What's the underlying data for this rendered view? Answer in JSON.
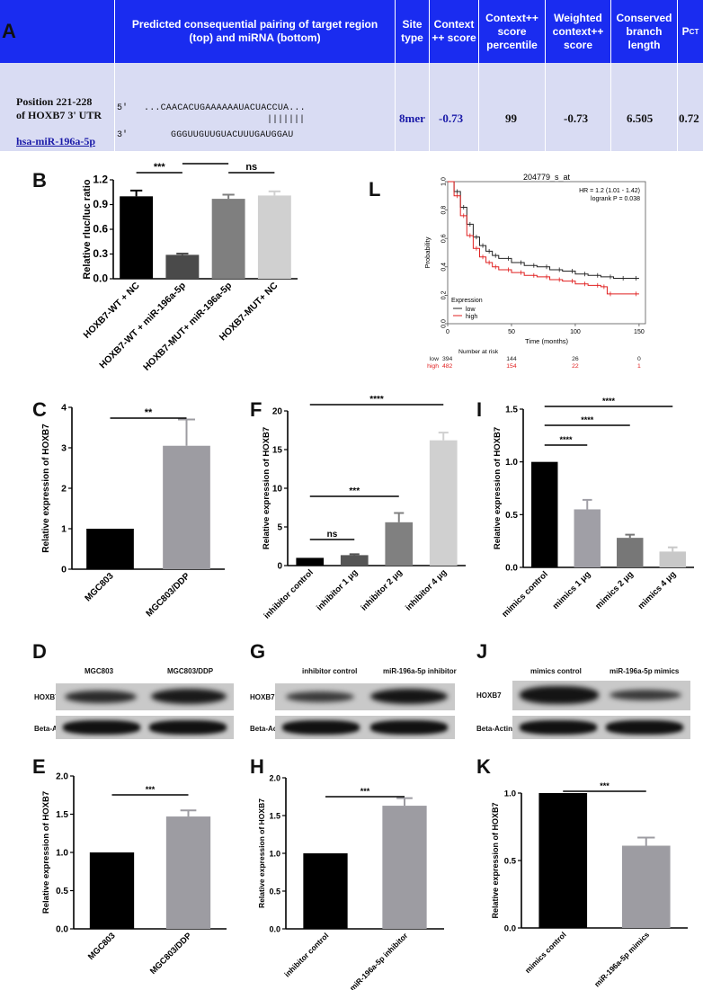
{
  "table": {
    "panel": "A",
    "headers": {
      "pairing": "Predicted consequential pairing of target region (top) and miRNA (bottom)",
      "site_type": "Site type",
      "context_score": "Context ++ score",
      "context_pct": "Context++ score percentile",
      "weighted": "Weighted context++ score",
      "branch": "Conserved branch length",
      "pct": "P",
      "pct_sub": "CT"
    },
    "row": {
      "position_line1": "Position 221-228",
      "position_line2": "of HOXB7 3' UTR",
      "mirna": "hsa-miR-196a-5p",
      "five_prime": "5'",
      "three_prime": "3'",
      "target_seq": "...CAACACUGAAAAAAUACUACCUA...",
      "pairing_marks": "|||||||",
      "mirna_seq": "GGGUUGUUGUACUUUGAUGGAU",
      "site_type": "8mer",
      "context_score": "-0.73",
      "context_pct": "99",
      "weighted": "-0.73",
      "branch": "6.505",
      "pct": "0.72"
    }
  },
  "panel_B": {
    "letter": "B",
    "chart_data": {
      "type": "bar",
      "categories": [
        "HOXB7-WT + NC",
        "HOXB7-WT + miR-196a-5p",
        "HOXB7-MUT+ miR-196a-5p",
        "HOXB7-MUT+ NC"
      ],
      "values": [
        1.0,
        0.29,
        0.97,
        1.01
      ],
      "errors": [
        0.07,
        0.015,
        0.05,
        0.05
      ],
      "colors": [
        "#000000",
        "#4a4a4a",
        "#7f7f7f",
        "#d0d0d0"
      ],
      "ylabel": "Relative rluc/luc ratio",
      "ylim": [
        0,
        1.2
      ],
      "yticks": [
        "0.0",
        "0.3",
        "0.6",
        "0.9",
        "1.2"
      ],
      "significance": [
        "***",
        "****",
        "ns"
      ]
    }
  },
  "panel_L": {
    "letter": "L",
    "chart_data": {
      "type": "line",
      "title": "204779_s_at",
      "xlabel": "Time (months)",
      "ylabel": "Probability",
      "xlim": [
        0,
        155
      ],
      "ylim": [
        0,
        1.0
      ],
      "xticks": [
        "0",
        "50",
        "100",
        "150"
      ],
      "yticks": [
        "0.0",
        "0.2",
        "0.4",
        "0.6",
        "0.8",
        "1.0"
      ],
      "hr_text": "HR = 1.2 (1.01 - 1.42)",
      "logrank_text": "logrank P = 0.038",
      "legend_title": "Expression",
      "series": [
        {
          "name": "low",
          "color": "#222222",
          "x": [
            0,
            5,
            10,
            15,
            20,
            25,
            30,
            35,
            40,
            50,
            60,
            70,
            80,
            90,
            100,
            110,
            120,
            130,
            140,
            150
          ],
          "y": [
            1.0,
            0.93,
            0.82,
            0.7,
            0.61,
            0.55,
            0.51,
            0.48,
            0.46,
            0.43,
            0.41,
            0.4,
            0.38,
            0.37,
            0.35,
            0.34,
            0.33,
            0.32,
            0.32,
            0.32
          ]
        },
        {
          "name": "high",
          "color": "#e02020",
          "x": [
            0,
            5,
            10,
            15,
            20,
            25,
            30,
            35,
            40,
            50,
            60,
            70,
            80,
            90,
            100,
            110,
            120,
            125,
            130,
            150
          ],
          "y": [
            1.0,
            0.9,
            0.76,
            0.62,
            0.53,
            0.47,
            0.43,
            0.4,
            0.38,
            0.36,
            0.34,
            0.33,
            0.31,
            0.3,
            0.28,
            0.27,
            0.26,
            0.21,
            0.21,
            0.21
          ]
        }
      ],
      "risk_table": {
        "header": "Number at risk",
        "rows": [
          {
            "label": "low",
            "values": [
              "394",
              "144",
              "26",
              "0"
            ]
          },
          {
            "label": "high",
            "values": [
              "482",
              "154",
              "22",
              "1"
            ]
          }
        ]
      }
    }
  },
  "panel_C": {
    "letter": "C",
    "chart_data": {
      "type": "bar",
      "categories": [
        "MGC803",
        "MGC803/DDP"
      ],
      "values": [
        1.0,
        3.05
      ],
      "errors": [
        0,
        0.65
      ],
      "colors": [
        "#000000",
        "#9d9ca2"
      ],
      "ylabel": "Relative expression of HOXB7",
      "ylim": [
        0,
        4
      ],
      "yticks": [
        "0",
        "1",
        "2",
        "3",
        "4"
      ],
      "significance": [
        "**"
      ]
    }
  },
  "panel_F": {
    "letter": "F",
    "chart_data": {
      "type": "bar",
      "categories": [
        "inhibitor control",
        "inhibitor 1 μg",
        "inhibitor 2 μg",
        "inhibitor 4 μg"
      ],
      "values": [
        1.0,
        1.35,
        5.6,
        16.2
      ],
      "errors": [
        0,
        0.12,
        1.2,
        1.0
      ],
      "colors": [
        "#000000",
        "#555555",
        "#808080",
        "#d0d0d0"
      ],
      "ylabel": "Relative expression of HOXB7",
      "ylim": [
        0,
        20
      ],
      "yticks": [
        "0",
        "5",
        "10",
        "15",
        "20"
      ],
      "significance": [
        "ns",
        "***",
        "****"
      ]
    }
  },
  "panel_I": {
    "letter": "I",
    "chart_data": {
      "type": "bar",
      "categories": [
        "mimics control",
        "mimics 1 μg",
        "mimics 2 μg",
        "mimics 4 μg"
      ],
      "values": [
        1.0,
        0.55,
        0.28,
        0.15
      ],
      "errors": [
        0,
        0.09,
        0.03,
        0.04
      ],
      "colors": [
        "#000000",
        "#a09fa6",
        "#777777",
        "#c8c8c8"
      ],
      "ylabel": "Relative expression of HOXB7",
      "ylim": [
        0,
        1.5
      ],
      "yticks": [
        "0.0",
        "0.5",
        "1.0",
        "1.5"
      ],
      "significance": [
        "****",
        "****",
        "****"
      ]
    }
  },
  "blots": {
    "D": {
      "letter": "D",
      "lanes": [
        "MGC803",
        "MGC803/DDP"
      ],
      "rows": [
        "HOXB7",
        "Beta-Actin"
      ]
    },
    "G": {
      "letter": "G",
      "lanes": [
        "inhibitor control",
        "miR-196a-5p inhibitor"
      ],
      "rows": [
        "HOXB7",
        "Beta-Actin"
      ]
    },
    "J": {
      "letter": "J",
      "lanes": [
        "mimics control",
        "miR-196a-5p mimics"
      ],
      "rows": [
        "HOXB7",
        "Beta-Actin"
      ]
    }
  },
  "panel_E": {
    "letter": "E",
    "chart_data": {
      "type": "bar",
      "categories": [
        "MGC803",
        "MGC803/DDP"
      ],
      "values": [
        1.0,
        1.47
      ],
      "errors": [
        0,
        0.08
      ],
      "colors": [
        "#000000",
        "#9d9ca2"
      ],
      "ylabel": "Relative expression of HOXB7",
      "ylim": [
        0,
        2.0
      ],
      "yticks": [
        "0.0",
        "0.5",
        "1.0",
        "1.5",
        "2.0"
      ],
      "significance": [
        "***"
      ]
    }
  },
  "panel_H": {
    "letter": "H",
    "chart_data": {
      "type": "bar",
      "categories": [
        "inhibitor control",
        "miR-196a-5p inhibitor"
      ],
      "values": [
        1.0,
        1.63
      ],
      "errors": [
        0,
        0.1
      ],
      "colors": [
        "#000000",
        "#9d9ca2"
      ],
      "ylabel": "Relative expression of HOXB7",
      "ylim": [
        0,
        2.0
      ],
      "yticks": [
        "0.0",
        "0.5",
        "1.0",
        "1.5",
        "2.0"
      ],
      "significance": [
        "***"
      ]
    }
  },
  "panel_K": {
    "letter": "K",
    "chart_data": {
      "type": "bar",
      "categories": [
        "mimics control",
        "miR-196a-5p mimics"
      ],
      "values": [
        1.0,
        0.61
      ],
      "errors": [
        0,
        0.06
      ],
      "colors": [
        "#000000",
        "#9d9ca2"
      ],
      "ylabel": "Relative expression of HOXB7",
      "ylim": [
        0,
        1.0
      ],
      "yticks": [
        "0.0",
        "0.5",
        "1.0"
      ],
      "significance": [
        "***"
      ]
    }
  }
}
